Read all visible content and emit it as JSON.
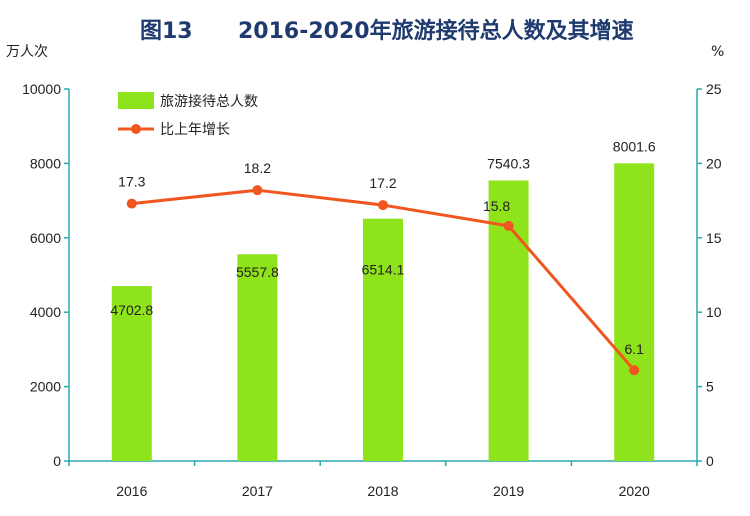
{
  "title_prefix": "图13",
  "title_main": "2016-2020年旅游接待总人数及其增速",
  "chart_data": {
    "type": "bar",
    "categories": [
      "2016",
      "2017",
      "2018",
      "2019",
      "2020"
    ],
    "series": [
      {
        "name": "旅游接待总人数",
        "type": "bar",
        "axis": "left",
        "values": [
          4702.8,
          5557.8,
          6514.1,
          7540.3,
          8001.6
        ],
        "labels": [
          "4702.8",
          "5557.8",
          "6514.1",
          "7540.3",
          "8001.6"
        ]
      },
      {
        "name": "比上年增长",
        "type": "line",
        "axis": "right",
        "values": [
          17.3,
          18.2,
          17.2,
          15.8,
          6.1
        ],
        "labels": [
          "17.3",
          "18.2",
          "17.2",
          "15.8",
          "6.1"
        ]
      }
    ],
    "left_axis": {
      "unit": "万人次",
      "ylim": [
        0,
        10000
      ],
      "ticks": [
        "0",
        "2000",
        "4000",
        "6000",
        "8000",
        "10000"
      ]
    },
    "right_axis": {
      "unit": "%",
      "ylim": [
        0,
        25
      ],
      "ticks": [
        "0",
        "5",
        "10",
        "15",
        "20",
        "25"
      ]
    },
    "legend_position": "top-left",
    "grid": false,
    "colors": {
      "bar": "#8fe31a",
      "line": "#f0561e",
      "axis": "#2aa8b0",
      "title": "#1f3a6e"
    }
  }
}
